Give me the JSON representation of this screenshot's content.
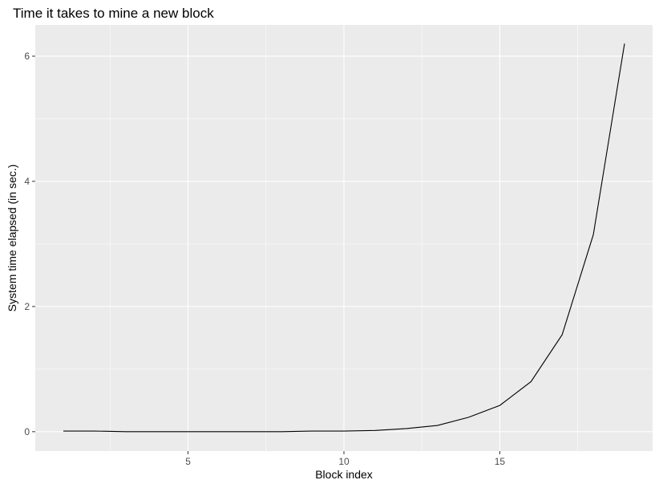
{
  "chart_data": {
    "type": "line",
    "title": "Time it takes to mine a new block",
    "xlabel": "Block index",
    "ylabel": "System time elapsed (in sec.)",
    "xlim": [
      0.1,
      19.9
    ],
    "ylim": [
      -0.31,
      6.5
    ],
    "xticks": [
      5,
      10,
      15
    ],
    "xtick_labels": [
      "5",
      "10",
      "15"
    ],
    "yticks": [
      0,
      2,
      4,
      6
    ],
    "ytick_labels": [
      "0",
      "2",
      "4",
      "6"
    ],
    "grid": true,
    "legend": "none",
    "colors": {
      "panel_background": "#ebebeb",
      "grid_major": "#ffffff",
      "line": "#000000",
      "tick_mark": "#333333"
    },
    "series": [
      {
        "x": [
          1,
          2,
          3,
          4,
          5,
          6,
          7,
          8,
          9,
          10,
          11,
          12,
          13,
          14,
          15,
          16,
          17,
          18,
          19
        ],
        "values": [
          0.01,
          0.01,
          0.0,
          0.0,
          0.0,
          0.0,
          0.0,
          0.0,
          0.01,
          0.01,
          0.02,
          0.05,
          0.1,
          0.23,
          0.42,
          0.8,
          1.55,
          3.15,
          6.2
        ]
      }
    ]
  }
}
